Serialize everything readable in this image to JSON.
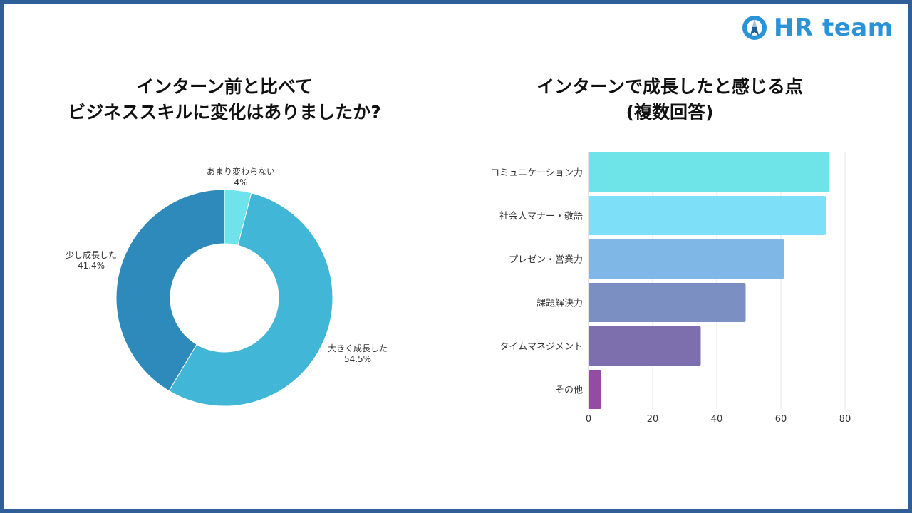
{
  "brand": {
    "name": "HR team",
    "icon": "rocket-circle-icon",
    "color": "#2a93d8"
  },
  "frame_color": "#2f5f96",
  "chart_data": [
    {
      "type": "pie",
      "title": [
        "インターン前と比べて",
        "ビジネススキルに変化はありましたか?"
      ],
      "donut": true,
      "slices": [
        {
          "label": "あまり変わらない",
          "value": 4,
          "display": "4%",
          "color": "#6ee3ec"
        },
        {
          "label": "大きく成長した",
          "value": 54.5,
          "display": "54.5%",
          "color": "#41b6d6"
        },
        {
          "label": "少し成長した",
          "value": 41.4,
          "display": "41.4%",
          "color": "#2e8abb"
        }
      ]
    },
    {
      "type": "bar",
      "orientation": "horizontal",
      "title": [
        "インターンで成長したと感じる点",
        "(複数回答)"
      ],
      "categories": [
        "コミュニケーション力",
        "社会人マナー・敬語",
        "プレゼン・営業力",
        "課題解決力",
        "タイムマネジメント",
        "その他"
      ],
      "values": [
        75,
        74,
        61,
        49,
        35,
        4
      ],
      "colors": [
        "#6ee3e8",
        "#7ddff8",
        "#7fb8e6",
        "#7b8fc3",
        "#7d6fae",
        "#924da3"
      ],
      "xlim": [
        0,
        80
      ],
      "xticks": [
        0,
        20,
        40,
        60,
        80
      ],
      "grid": true
    }
  ]
}
